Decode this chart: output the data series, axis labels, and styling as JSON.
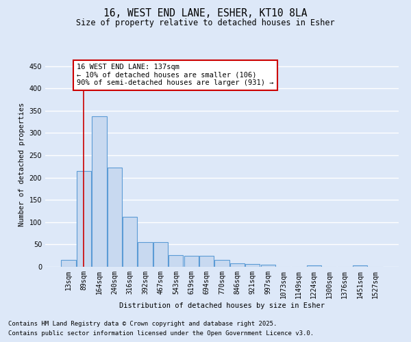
{
  "title": "16, WEST END LANE, ESHER, KT10 8LA",
  "subtitle": "Size of property relative to detached houses in Esher",
  "xlabel": "Distribution of detached houses by size in Esher",
  "ylabel": "Number of detached properties",
  "categories": [
    "13sqm",
    "89sqm",
    "164sqm",
    "240sqm",
    "316sqm",
    "392sqm",
    "467sqm",
    "543sqm",
    "619sqm",
    "694sqm",
    "770sqm",
    "846sqm",
    "921sqm",
    "997sqm",
    "1073sqm",
    "1149sqm",
    "1224sqm",
    "1300sqm",
    "1376sqm",
    "1451sqm",
    "1527sqm"
  ],
  "values": [
    15,
    215,
    338,
    222,
    112,
    55,
    55,
    26,
    25,
    25,
    16,
    8,
    6,
    4,
    0,
    0,
    3,
    0,
    0,
    3,
    0
  ],
  "bar_color": "#c8d9f0",
  "bar_edge_color": "#5b9bd5",
  "vline_x": 1,
  "vline_color": "#cc0000",
  "annotation_text": "16 WEST END LANE: 137sqm\n← 10% of detached houses are smaller (106)\n90% of semi-detached houses are larger (931) →",
  "annotation_box_color": "#ffffff",
  "annotation_box_edge_color": "#cc0000",
  "ylim": [
    0,
    460
  ],
  "yticks": [
    0,
    50,
    100,
    150,
    200,
    250,
    300,
    350,
    400,
    450
  ],
  "bg_color": "#dde8f8",
  "plot_bg_color": "#dde8f8",
  "grid_color": "#ffffff",
  "footer1": "Contains HM Land Registry data © Crown copyright and database right 2025.",
  "footer2": "Contains public sector information licensed under the Open Government Licence v3.0."
}
